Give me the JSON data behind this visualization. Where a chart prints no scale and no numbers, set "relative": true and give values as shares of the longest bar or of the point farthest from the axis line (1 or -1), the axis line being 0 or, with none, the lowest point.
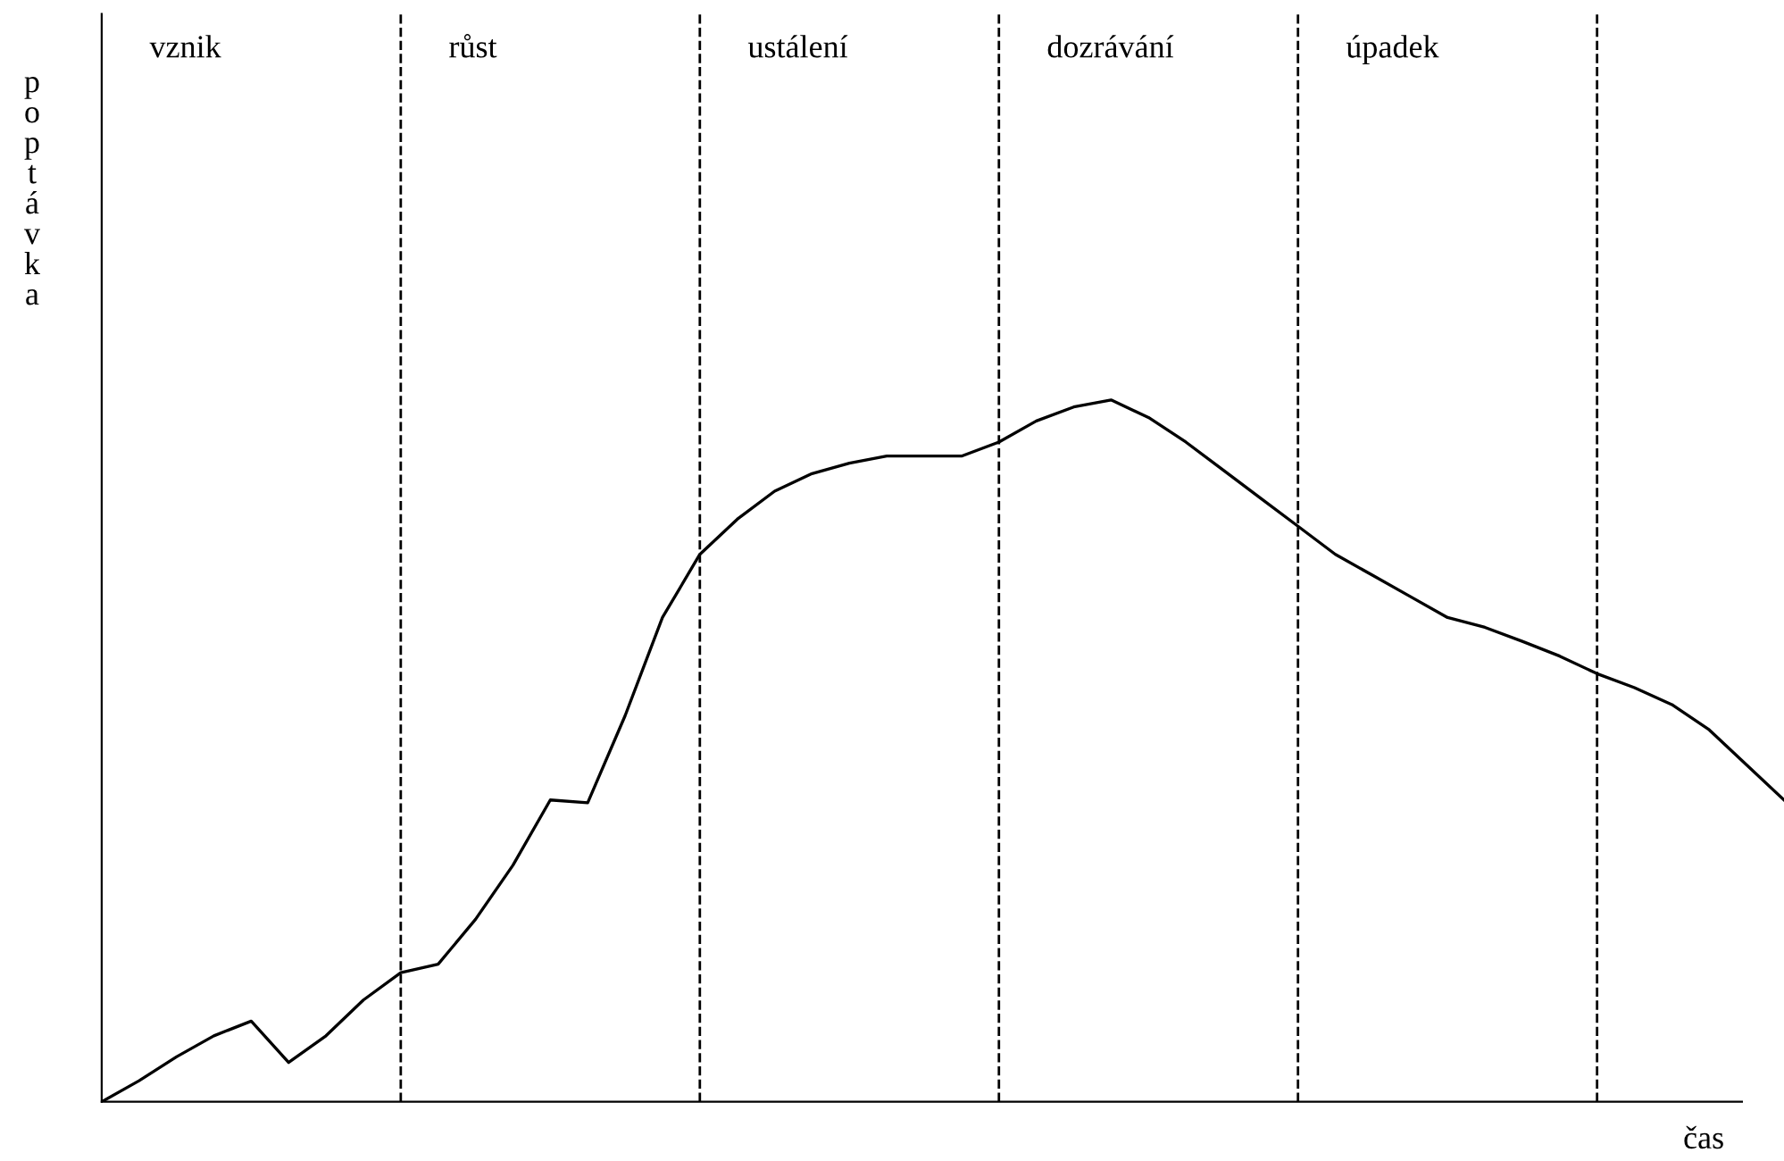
{
  "chart_data": {
    "type": "line",
    "relative": true,
    "color": "#000000",
    "ylabel": "poptávka",
    "xlabel": "čas",
    "categories": [
      null,
      null,
      null,
      null,
      null,
      null,
      null,
      null,
      null,
      null,
      null,
      null,
      null,
      null,
      null,
      null,
      null,
      null,
      null,
      null,
      null,
      null,
      null,
      null,
      null,
      null,
      null,
      null,
      null,
      null,
      null,
      null,
      null,
      null,
      null,
      null,
      null,
      null,
      null,
      null,
      null,
      null,
      null,
      null,
      null,
      null
    ],
    "values": [
      0,
      0.03,
      0.064,
      0.094,
      0.115,
      0.056,
      0.094,
      0.145,
      0.184,
      0.196,
      0.26,
      0.337,
      0.43,
      0.426,
      0.55,
      0.69,
      0.78,
      0.83,
      0.87,
      0.895,
      0.91,
      0.92,
      0.92,
      0.92,
      0.94,
      0.97,
      0.99,
      1,
      0.975,
      0.94,
      0.9,
      0.86,
      0.82,
      0.78,
      0.75,
      0.72,
      0.69,
      0.676,
      0.656,
      0.635,
      0.61,
      0.59,
      0.566,
      0.53,
      0.48,
      0.43
    ],
    "annotations": [
      "vznik",
      "růst",
      "ustálení",
      "dozrávání",
      "úpadek"
    ],
    "grid": "x"
  }
}
